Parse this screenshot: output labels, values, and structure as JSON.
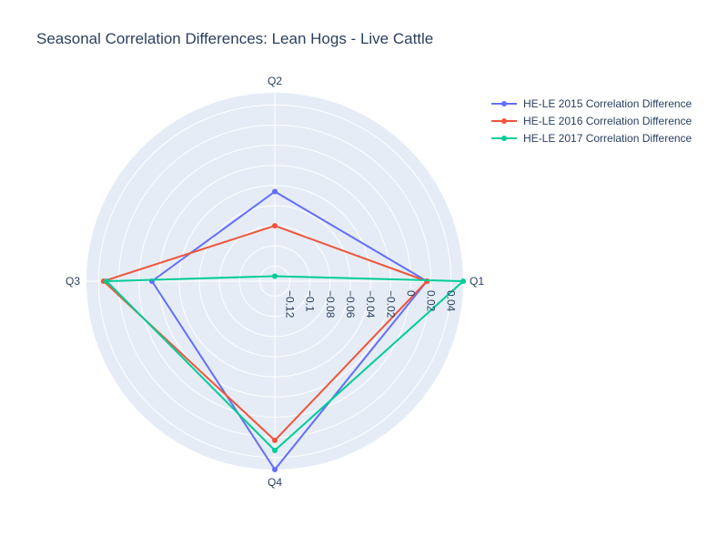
{
  "chart_data": {
    "type": "radar",
    "title": "Seasonal Correlation Differences: Lean Hogs - Live Cattle",
    "categories": [
      "Q1",
      "Q2",
      "Q3",
      "Q4"
    ],
    "radial_range": [
      -0.135,
      0.052
    ],
    "radial_ticks": [
      -0.12,
      -0.1,
      -0.08,
      -0.06,
      -0.04,
      -0.02,
      0,
      0.02,
      0.04
    ],
    "radial_tick_labels": [
      "−0.12",
      "−0.1",
      "−0.08",
      "−0.06",
      "−0.04",
      "−0.02",
      "0",
      "0.02",
      "0.04"
    ],
    "grid": true,
    "legend_position": "top-right",
    "series": [
      {
        "name": "HE-LE 2015 Correlation Difference",
        "color": "#636efa",
        "values": [
          0.016,
          -0.046,
          -0.013,
          0.052
        ]
      },
      {
        "name": "HE-LE 2016 Correlation Difference",
        "color": "#EF553B",
        "values": [
          0.016,
          -0.08,
          0.035,
          0.023
        ]
      },
      {
        "name": "HE-LE 2017 Correlation Difference",
        "color": "#00cc96",
        "values": [
          0.052,
          -0.13,
          0.032,
          0.033
        ]
      }
    ]
  }
}
